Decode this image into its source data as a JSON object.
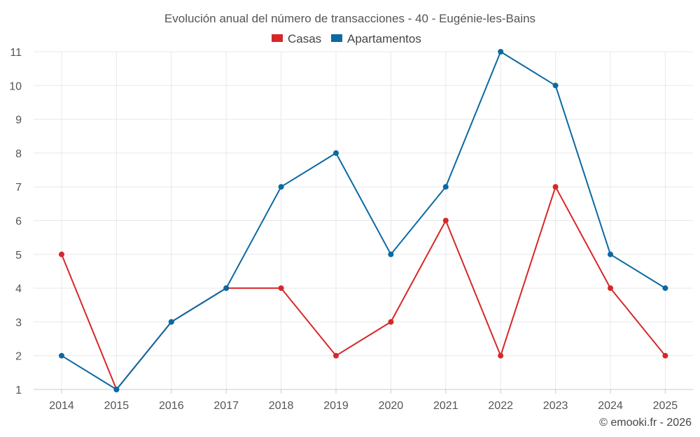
{
  "chart_data": {
    "type": "line",
    "title": "Evolución anual del número de transacciones - 40 - Eugénie-les-Bains",
    "categories": [
      "2014",
      "2015",
      "2016",
      "2017",
      "2018",
      "2019",
      "2020",
      "2021",
      "2022",
      "2023",
      "2024",
      "2025"
    ],
    "series": [
      {
        "name": "Casas",
        "color": "#d62728",
        "values": [
          5,
          1,
          3,
          4,
          4,
          2,
          3,
          6,
          2,
          7,
          4,
          2
        ]
      },
      {
        "name": "Apartamentos",
        "color": "#0b69a3",
        "values": [
          2,
          1,
          3,
          4,
          7,
          8,
          5,
          7,
          11,
          10,
          5,
          4
        ]
      }
    ],
    "ylim": [
      1,
      11
    ],
    "yticks": [
      1,
      2,
      3,
      4,
      5,
      6,
      7,
      8,
      9,
      10,
      11
    ],
    "grid": true,
    "legend": "top-center",
    "xlabel": "",
    "ylabel": ""
  },
  "credit": "© emooki.fr - 2026"
}
